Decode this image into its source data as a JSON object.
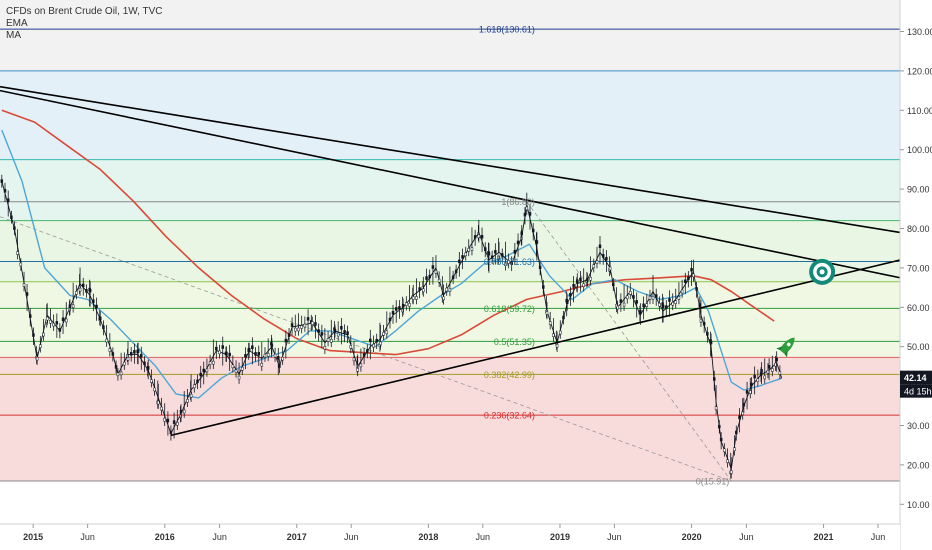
{
  "legend": {
    "title": "CFDs on Brent Crude Oil, 1W, TVC",
    "indicators": [
      "EMA",
      "MA"
    ]
  },
  "chart_data": {
    "type": "line",
    "x_ticks": [
      "2015",
      "Jun",
      "2016",
      "Jun",
      "2017",
      "Jun",
      "2018",
      "Jun",
      "2019",
      "Jun",
      "2020",
      "Jun",
      "2021",
      "Jun"
    ],
    "y_ticks": [
      "10.00",
      "20.00",
      "30.00",
      "40.00",
      "50.00",
      "60.00",
      "70.00",
      "80.00",
      "90.00",
      "100.00",
      "110.00",
      "120.00",
      "130.00"
    ],
    "ylim": [
      5,
      138
    ],
    "x_range": [
      "2014-10",
      "2021-08"
    ],
    "last_price_label": "42.14",
    "countdown_label": "4d 15h",
    "colors": {
      "price": "#131722",
      "ema": "#4da6d8",
      "ma": "#d94a36",
      "trendline": "#000000",
      "axis_badge": "#131722"
    },
    "fib_levels": [
      {
        "value": 15.91,
        "label": "0(15.91)",
        "color": "#888888"
      },
      {
        "value": 32.64,
        "label": "0.236(32.64)",
        "color": "#d32f2f"
      },
      {
        "value": 42.99,
        "label": "0.382(42.99)",
        "color": "#9e9d24"
      },
      {
        "value": 51.35,
        "label": "0.5(51.35)",
        "color": "#2e9e3c"
      },
      {
        "value": 59.72,
        "label": "0.618(59.72)",
        "color": "#2e9e3c"
      },
      {
        "value": 71.63,
        "label": "0.786(71.63)",
        "color": "#1f6fa3"
      },
      {
        "value": 86.8,
        "label": "1(86.80)",
        "color": "#888888"
      },
      {
        "value": 130.61,
        "label": "1.618(130.61)",
        "color": "#1f3d8a"
      }
    ],
    "extra_levels": [
      {
        "value": 120,
        "color": "#3b8ec2"
      },
      {
        "value": 97.5,
        "color": "#39b8b0"
      },
      {
        "value": 82,
        "color": "#46b46a"
      },
      {
        "value": 66.5,
        "color": "#8bc34a"
      },
      {
        "value": 47.3,
        "color": "#e06060"
      }
    ],
    "bands": [
      {
        "from": 15.91,
        "to": 47.3,
        "color": "#f8dcdc"
      },
      {
        "from": 47.3,
        "to": 66.5,
        "color": "#f0f8e4"
      },
      {
        "from": 66.5,
        "to": 82,
        "color": "#eaf6e4"
      },
      {
        "from": 82,
        "to": 97.5,
        "color": "#e4f4ee"
      },
      {
        "from": 97.5,
        "to": 120,
        "color": "#e4f0f8"
      },
      {
        "from": 120,
        "to": 130.61,
        "color": "#f2f2f2"
      },
      {
        "from": 130.61,
        "to": 138,
        "color": "#f2f2f2"
      }
    ],
    "price_series": [
      [
        "2014-10-06",
        92
      ],
      [
        "2014-11-10",
        80
      ],
      [
        "2014-12-15",
        62
      ],
      [
        "2015-01-12",
        47
      ],
      [
        "2015-02-09",
        58
      ],
      [
        "2015-03-16",
        54
      ],
      [
        "2015-04-13",
        60
      ],
      [
        "2015-05-11",
        66
      ],
      [
        "2015-06-08",
        63
      ],
      [
        "2015-07-06",
        57
      ],
      [
        "2015-08-10",
        48
      ],
      [
        "2015-08-24",
        43
      ],
      [
        "2015-09-21",
        48
      ],
      [
        "2015-10-19",
        48
      ],
      [
        "2015-11-16",
        44
      ],
      [
        "2015-12-14",
        37
      ],
      [
        "2016-01-18",
        28
      ],
      [
        "2016-02-15",
        33
      ],
      [
        "2016-03-14",
        39
      ],
      [
        "2016-04-18",
        43
      ],
      [
        "2016-05-23",
        49
      ],
      [
        "2016-06-20",
        48
      ],
      [
        "2016-07-25",
        43
      ],
      [
        "2016-08-22",
        49
      ],
      [
        "2016-09-26",
        47
      ],
      [
        "2016-10-24",
        50
      ],
      [
        "2016-11-14",
        45
      ],
      [
        "2016-12-19",
        55
      ],
      [
        "2017-02-13",
        56
      ],
      [
        "2017-03-20",
        51
      ],
      [
        "2017-04-17",
        54
      ],
      [
        "2017-05-22",
        53
      ],
      [
        "2017-06-19",
        45
      ],
      [
        "2017-07-24",
        50
      ],
      [
        "2017-08-21",
        52
      ],
      [
        "2017-09-25",
        58
      ],
      [
        "2017-10-23",
        60
      ],
      [
        "2017-11-20",
        63
      ],
      [
        "2017-12-18",
        65
      ],
      [
        "2018-01-22",
        70
      ],
      [
        "2018-02-12",
        63
      ],
      [
        "2018-03-19",
        69
      ],
      [
        "2018-04-23",
        75
      ],
      [
        "2018-05-21",
        79
      ],
      [
        "2018-06-18",
        72
      ],
      [
        "2018-07-16",
        74
      ],
      [
        "2018-08-20",
        71
      ],
      [
        "2018-09-17",
        78
      ],
      [
        "2018-10-01",
        86
      ],
      [
        "2018-10-29",
        75
      ],
      [
        "2018-11-26",
        59
      ],
      [
        "2018-12-24",
        51
      ],
      [
        "2019-01-21",
        61
      ],
      [
        "2019-02-18",
        66
      ],
      [
        "2019-03-18",
        67
      ],
      [
        "2019-04-22",
        74
      ],
      [
        "2019-05-20",
        70
      ],
      [
        "2019-06-10",
        60
      ],
      [
        "2019-07-15",
        64
      ],
      [
        "2019-08-12",
        58
      ],
      [
        "2019-09-16",
        64
      ],
      [
        "2019-10-14",
        59
      ],
      [
        "2019-11-18",
        62
      ],
      [
        "2019-12-23",
        67
      ],
      [
        "2020-01-06",
        69
      ],
      [
        "2020-01-27",
        58
      ],
      [
        "2020-02-24",
        50
      ],
      [
        "2020-03-09",
        36
      ],
      [
        "2020-03-23",
        26
      ],
      [
        "2020-04-20",
        19
      ],
      [
        "2020-05-04",
        28
      ],
      [
        "2020-05-25",
        35
      ],
      [
        "2020-06-15",
        40
      ],
      [
        "2020-07-13",
        43
      ],
      [
        "2020-08-03",
        44
      ],
      [
        "2020-08-24",
        46
      ],
      [
        "2020-09-07",
        42
      ]
    ],
    "ema_series": [
      [
        "2014-10-06",
        105
      ],
      [
        "2014-12-01",
        92
      ],
      [
        "2015-02-02",
        70
      ],
      [
        "2015-04-13",
        63
      ],
      [
        "2015-06-01",
        62
      ],
      [
        "2015-08-03",
        57
      ],
      [
        "2015-10-05",
        51
      ],
      [
        "2015-12-07",
        45
      ],
      [
        "2016-02-01",
        38
      ],
      [
        "2016-04-04",
        37
      ],
      [
        "2016-06-06",
        42
      ],
      [
        "2016-08-01",
        45
      ],
      [
        "2016-10-03",
        47
      ],
      [
        "2016-12-05",
        49
      ],
      [
        "2017-02-06",
        54
      ],
      [
        "2017-04-03",
        54
      ],
      [
        "2017-06-05",
        52
      ],
      [
        "2017-08-07",
        50
      ],
      [
        "2017-10-02",
        54
      ],
      [
        "2017-12-04",
        59
      ],
      [
        "2018-02-05",
        63
      ],
      [
        "2018-04-02",
        66
      ],
      [
        "2018-06-04",
        71
      ],
      [
        "2018-08-06",
        73
      ],
      [
        "2018-10-08",
        76
      ],
      [
        "2018-12-03",
        68
      ],
      [
        "2019-02-04",
        62
      ],
      [
        "2019-04-01",
        66
      ],
      [
        "2019-06-03",
        67
      ],
      [
        "2019-08-05",
        64
      ],
      [
        "2019-10-07",
        62
      ],
      [
        "2019-12-02",
        63
      ],
      [
        "2020-01-13",
        65
      ],
      [
        "2020-02-17",
        59
      ],
      [
        "2020-03-16",
        51
      ],
      [
        "2020-04-20",
        41
      ],
      [
        "2020-05-25",
        39
      ],
      [
        "2020-07-06",
        40
      ],
      [
        "2020-09-07",
        42
      ]
    ],
    "ma_series": [
      [
        "2014-10-06",
        110
      ],
      [
        "2015-01-05",
        107
      ],
      [
        "2015-04-06",
        101
      ],
      [
        "2015-07-06",
        95
      ],
      [
        "2015-10-05",
        87
      ],
      [
        "2016-01-04",
        78
      ],
      [
        "2016-04-04",
        70
      ],
      [
        "2016-07-04",
        63
      ],
      [
        "2016-10-03",
        57
      ],
      [
        "2017-01-02",
        52
      ],
      [
        "2017-04-03",
        49
      ],
      [
        "2017-07-03",
        48.5
      ],
      [
        "2017-10-02",
        48
      ],
      [
        "2018-01-01",
        49.5
      ],
      [
        "2018-04-02",
        53
      ],
      [
        "2018-07-02",
        58
      ],
      [
        "2018-10-01",
        62
      ],
      [
        "2019-01-07",
        64
      ],
      [
        "2019-04-01",
        66
      ],
      [
        "2019-07-01",
        67
      ],
      [
        "2019-10-07",
        67.5
      ],
      [
        "2020-01-06",
        68
      ],
      [
        "2020-02-24",
        67
      ],
      [
        "2020-04-20",
        64
      ],
      [
        "2020-06-22",
        60
      ],
      [
        "2020-08-17",
        56.5
      ]
    ],
    "trendlines": [
      {
        "from": [
          "2014-10-01",
          116
        ],
        "to": [
          "2021-08-01",
          79
        ]
      },
      {
        "from": [
          "2014-10-01",
          115
        ],
        "to": [
          "2021-08-01",
          67.5
        ]
      },
      {
        "from": [
          "2016-01-18",
          27.5
        ],
        "to": [
          "2021-08-01",
          72
        ]
      }
    ],
    "fib_anchor_lines": [
      {
        "from": [
          "2018-10-01",
          86.8
        ],
        "to": [
          "2020-04-20",
          15.91
        ]
      },
      {
        "from": [
          "2014-10-01",
          83
        ],
        "to": [
          "2020-04-20",
          15.91
        ]
      }
    ],
    "target_marker": [
      "2020-12-28",
      69
    ],
    "rocket_marker": [
      "2020-09-21",
      50
    ]
  }
}
